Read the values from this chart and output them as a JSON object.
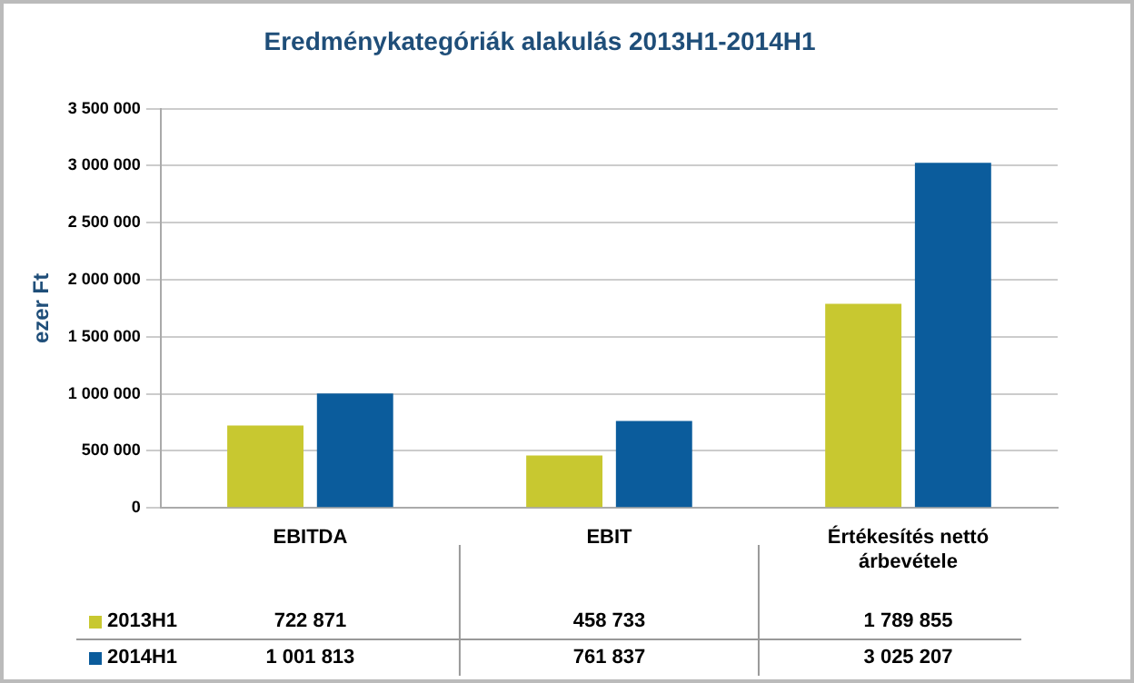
{
  "chart_data": {
    "type": "bar",
    "title": "Eredménykategóriák alakulás 2013H1-2014H1",
    "ylabel": "ezer Ft",
    "categories": [
      "EBITDA",
      "EBIT",
      "Értékesítés nettó árbevétele"
    ],
    "series": [
      {
        "name": "2013H1",
        "color": "#c8c830",
        "values": [
          722871,
          458733,
          1789855
        ],
        "value_labels": [
          "722 871",
          "458 733",
          "1 789 855"
        ]
      },
      {
        "name": "2014H1",
        "color": "#0b5c9c",
        "values": [
          1001813,
          761837,
          3025207
        ],
        "value_labels": [
          "1 001 813",
          "761 837",
          "3 025 207"
        ]
      }
    ],
    "ylim": [
      0,
      3500000
    ],
    "yticks": [
      {
        "value": 0,
        "label": "0"
      },
      {
        "value": 500000,
        "label": "500 000"
      },
      {
        "value": 1000000,
        "label": "1 000 000"
      },
      {
        "value": 1500000,
        "label": "1 500 000"
      },
      {
        "value": 2000000,
        "label": "2 000 000"
      },
      {
        "value": 2500000,
        "label": "2 500 000"
      },
      {
        "value": 3000000,
        "label": "3 000 000"
      },
      {
        "value": 3500000,
        "label": "3 500 000"
      }
    ],
    "grid": "y",
    "legend": "bottom"
  }
}
